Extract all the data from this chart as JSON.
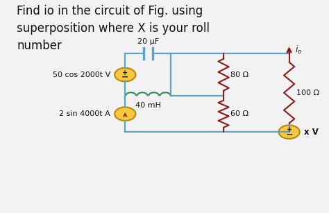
{
  "title_text": "Find io in the circuit of Fig. using\nsuperposition where X is your roll\nnumber",
  "title_fontsize": 12,
  "bg_color": "#f2f2f2",
  "wire_color": "#5ba3c9",
  "resistor_color": "#8B1A1A",
  "inductor_color": "#2e8b57",
  "text_color": "#111111",
  "source_color": "#e8a020",
  "arrow_color": "#8B1A1A",
  "fig_width": 4.74,
  "fig_height": 3.07,
  "dpi": 100,
  "label_20uF": "20 μF",
  "label_40mH": "40 mH",
  "label_80ohm": "80 Ω",
  "label_60ohm": "60 Ω",
  "label_100ohm": "100 Ω",
  "label_50cos": "50 cos 2000t V",
  "label_2sin": "2 sin 4000t A",
  "label_xv": "x V",
  "label_io": "i_o"
}
